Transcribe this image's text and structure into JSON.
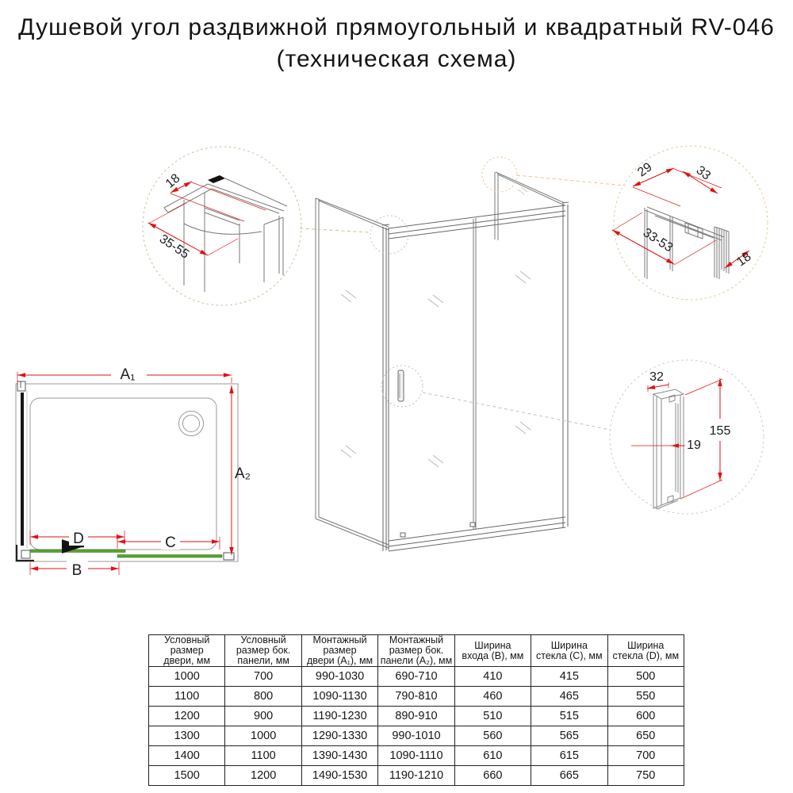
{
  "title": {
    "line1": "Душевой угол раздвижной прямоугольный и квадратный RV-046",
    "line2": "(техническая схема)"
  },
  "colors": {
    "dimension_red": "#e01212",
    "glass_green": "#58a42c",
    "detail_circle_green": "#a9cf96",
    "detail_circle_orange": "#e7c391",
    "detail_circle_gray": "#c9c9c9",
    "drawing_line_gray": "#7a7a7a",
    "text_black": "#1c1c1c"
  },
  "plan": {
    "labels": {
      "a1": "A₁",
      "a2": "A₂",
      "b": "B",
      "c": "C",
      "d": "D"
    }
  },
  "details": {
    "top_left": {
      "dim_18": "18",
      "dim_35_55": "35-55"
    },
    "top_right": {
      "dim_29": "29",
      "dim_33": "33",
      "dim_33_53": "33-53",
      "dim_18": "18"
    },
    "handle": {
      "dim_32": "32",
      "dim_155": "155",
      "dim_19": "19"
    }
  },
  "table": {
    "headers": [
      "Условный\nразмер\nдвери, мм",
      "Условный\nразмер бок.\nпанели, мм",
      "Монтажный\nразмер\nдвери (A₁), мм",
      "Монтажный\nразмер бок.\nпанели (A₂), мм",
      "Ширина\nвхода (B), мм",
      "Ширина\nстекла (C), мм",
      "Ширина\nстекла (D), мм"
    ],
    "rows": [
      [
        "1000",
        "700",
        "990-1030",
        "690-710",
        "410",
        "415",
        "500"
      ],
      [
        "1100",
        "800",
        "1090-1130",
        "790-810",
        "460",
        "465",
        "550"
      ],
      [
        "1200",
        "900",
        "1190-1230",
        "890-910",
        "510",
        "515",
        "600"
      ],
      [
        "1300",
        "1000",
        "1290-1330",
        "990-1010",
        "560",
        "565",
        "650"
      ],
      [
        "1400",
        "1100",
        "1390-1430",
        "1090-1110",
        "610",
        "615",
        "700"
      ],
      [
        "1500",
        "1200",
        "1490-1530",
        "1190-1210",
        "660",
        "665",
        "750"
      ]
    ]
  }
}
